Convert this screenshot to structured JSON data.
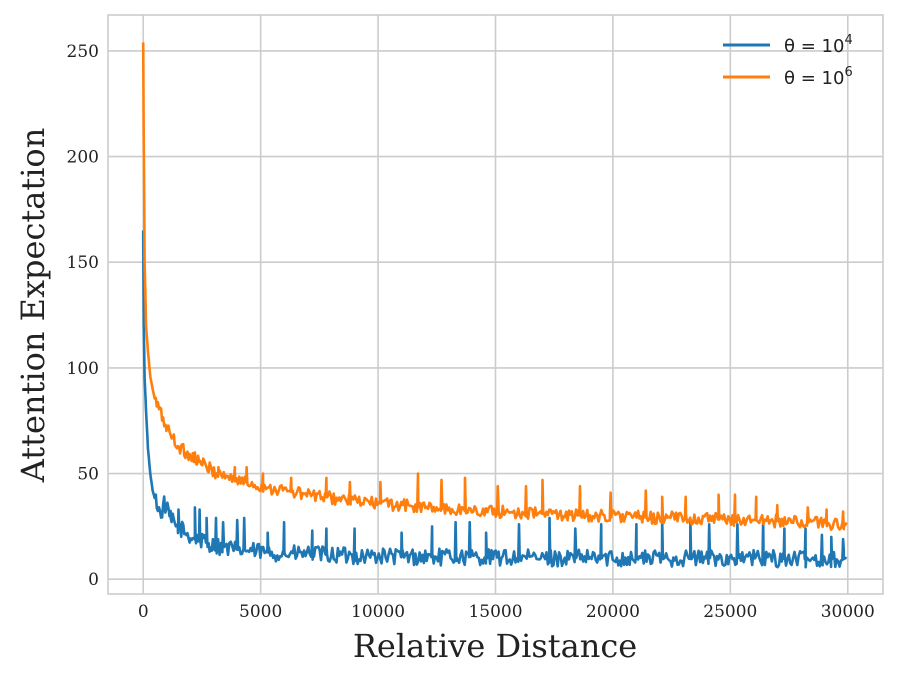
{
  "chart_data": {
    "type": "line",
    "title": "",
    "xlabel": "Relative Distance",
    "ylabel": "Attention Expectation",
    "xlim": [
      -1500,
      31500
    ],
    "ylim": [
      -7,
      267
    ],
    "xticks": [
      0,
      5000,
      10000,
      15000,
      20000,
      25000,
      30000
    ],
    "yticks": [
      0,
      50,
      100,
      150,
      200,
      250
    ],
    "grid": true,
    "legend_position": "top-right",
    "series": [
      {
        "name": "θ = 10^4",
        "legend_base": "θ = 10",
        "legend_exp": "4",
        "color": "#1f77b4",
        "points": [
          [
            0,
            165
          ],
          [
            20,
            120
          ],
          [
            60,
            95
          ],
          [
            120,
            80
          ],
          [
            200,
            62
          ],
          [
            300,
            50
          ],
          [
            400,
            42
          ],
          [
            500,
            38
          ],
          [
            600,
            36
          ],
          [
            700,
            31
          ],
          [
            800,
            32
          ],
          [
            900,
            36
          ],
          [
            1000,
            33
          ],
          [
            1200,
            28
          ],
          [
            1400,
            25
          ],
          [
            1600,
            24
          ],
          [
            1800,
            22
          ],
          [
            2000,
            20
          ],
          [
            2500,
            18
          ],
          [
            3000,
            16
          ],
          [
            3500,
            15
          ],
          [
            4000,
            14
          ],
          [
            5000,
            13
          ],
          [
            6000,
            12
          ],
          [
            7000,
            12
          ],
          [
            8000,
            11.5
          ],
          [
            9000,
            11
          ],
          [
            10000,
            11
          ],
          [
            12000,
            10.5
          ],
          [
            14000,
            10.5
          ],
          [
            16000,
            10
          ],
          [
            18000,
            10
          ],
          [
            20000,
            10
          ],
          [
            22000,
            10
          ],
          [
            24000,
            10
          ],
          [
            26000,
            10
          ],
          [
            28000,
            9.5
          ],
          [
            30000,
            9.5
          ]
        ],
        "noise": 4,
        "spikes": [
          [
            1150,
            30
          ],
          [
            1500,
            33
          ],
          [
            2200,
            34
          ],
          [
            2400,
            33
          ],
          [
            2700,
            29
          ],
          [
            3100,
            29
          ],
          [
            3400,
            27
          ],
          [
            4000,
            28
          ],
          [
            4300,
            29
          ],
          [
            5300,
            22
          ],
          [
            6000,
            27
          ],
          [
            7200,
            23
          ],
          [
            7800,
            24
          ],
          [
            9000,
            24
          ],
          [
            11000,
            22
          ],
          [
            12300,
            25
          ],
          [
            13300,
            27
          ],
          [
            13900,
            27
          ],
          [
            14600,
            22
          ],
          [
            16000,
            26
          ],
          [
            17300,
            29
          ],
          [
            18400,
            24
          ],
          [
            19500,
            26
          ],
          [
            21000,
            26
          ],
          [
            22100,
            28
          ],
          [
            23300,
            27
          ],
          [
            24100,
            26
          ],
          [
            25300,
            26
          ],
          [
            26400,
            28
          ],
          [
            27300,
            24
          ],
          [
            28200,
            24
          ],
          [
            28900,
            21
          ],
          [
            29300,
            20
          ],
          [
            29800,
            19
          ]
        ]
      },
      {
        "name": "θ = 10^6",
        "legend_base": "θ = 10",
        "legend_exp": "6",
        "color": "#ff7f0e",
        "points": [
          [
            0,
            254
          ],
          [
            20,
            210
          ],
          [
            60,
            150
          ],
          [
            120,
            120
          ],
          [
            200,
            108
          ],
          [
            300,
            96
          ],
          [
            400,
            90
          ],
          [
            500,
            85
          ],
          [
            700,
            80
          ],
          [
            900,
            74
          ],
          [
            1100,
            70
          ],
          [
            1300,
            66
          ],
          [
            1500,
            63
          ],
          [
            1800,
            60
          ],
          [
            2200,
            57
          ],
          [
            2600,
            54
          ],
          [
            3000,
            51
          ],
          [
            3500,
            49
          ],
          [
            4000,
            47
          ],
          [
            5000,
            44
          ],
          [
            6000,
            42
          ],
          [
            7000,
            40
          ],
          [
            8000,
            38.5
          ],
          [
            9000,
            37
          ],
          [
            10000,
            36
          ],
          [
            11000,
            35
          ],
          [
            12000,
            34
          ],
          [
            13000,
            33
          ],
          [
            14000,
            32.5
          ],
          [
            15000,
            32
          ],
          [
            16000,
            31.5
          ],
          [
            17000,
            31
          ],
          [
            18000,
            30.5
          ],
          [
            19000,
            30
          ],
          [
            20000,
            30
          ],
          [
            21000,
            29.5
          ],
          [
            22000,
            29
          ],
          [
            23000,
            29
          ],
          [
            24000,
            28.5
          ],
          [
            25000,
            28
          ],
          [
            26000,
            28
          ],
          [
            27000,
            27.5
          ],
          [
            28000,
            27
          ],
          [
            29000,
            26.5
          ],
          [
            30000,
            26
          ]
        ],
        "noise": 3,
        "spikes": [
          [
            1000,
            72
          ],
          [
            2200,
            60
          ],
          [
            3200,
            53
          ],
          [
            3900,
            53
          ],
          [
            4400,
            53
          ],
          [
            5100,
            50
          ],
          [
            6300,
            48
          ],
          [
            7800,
            48
          ],
          [
            8800,
            46
          ],
          [
            10100,
            46
          ],
          [
            11700,
            50
          ],
          [
            12700,
            47
          ],
          [
            13700,
            48
          ],
          [
            15100,
            44
          ],
          [
            16300,
            44
          ],
          [
            17000,
            47
          ],
          [
            18600,
            44
          ],
          [
            19900,
            41
          ],
          [
            21400,
            42
          ],
          [
            22100,
            39
          ],
          [
            23100,
            39
          ],
          [
            24500,
            40
          ],
          [
            25200,
            40
          ],
          [
            26100,
            39
          ],
          [
            27000,
            35
          ],
          [
            28300,
            34
          ],
          [
            29100,
            33
          ],
          [
            29800,
            32
          ]
        ]
      }
    ]
  }
}
